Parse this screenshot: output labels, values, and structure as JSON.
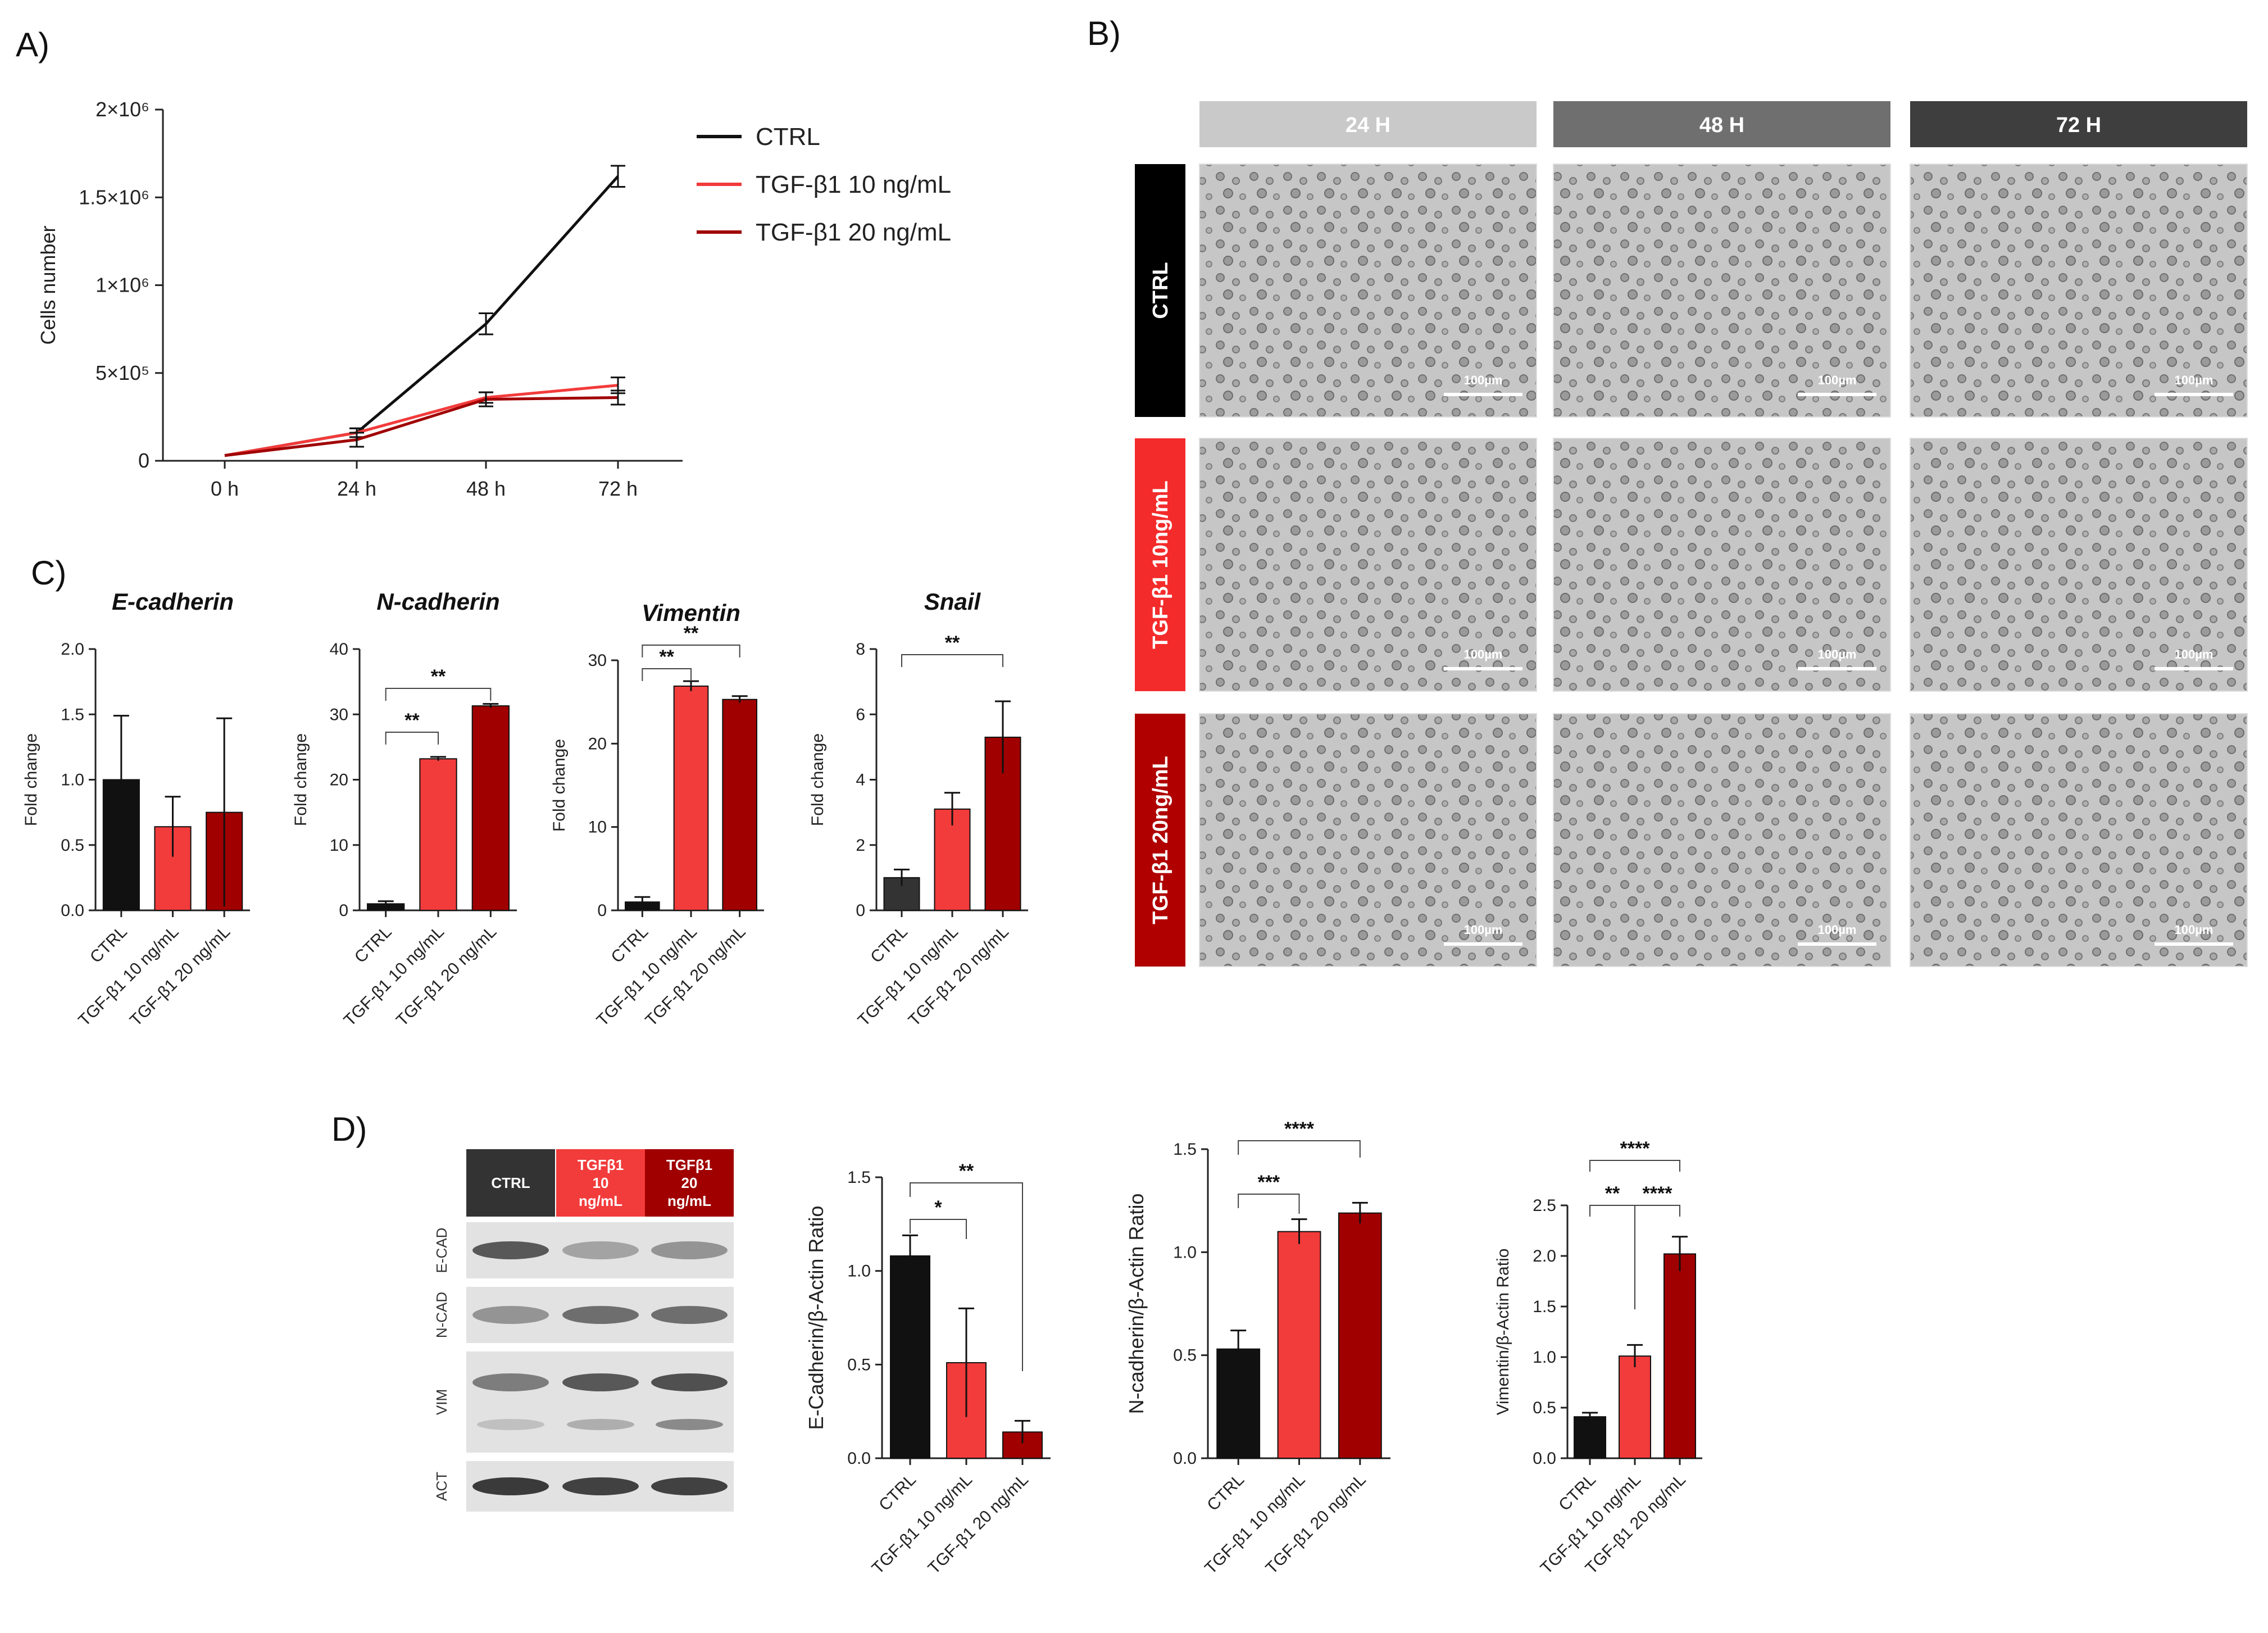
{
  "panels": {
    "a": "A)",
    "b": "B)",
    "c": "C)",
    "d": "D)"
  },
  "colors": {
    "ctrl": "#111111",
    "tgf10": "#f23b3b",
    "tgf20": "#a00000",
    "ctrl_dark": "#333333"
  },
  "chart_data": [
    {
      "id": "growth",
      "type": "line",
      "x": [
        "0 h",
        "24 h",
        "48 h",
        "72 h"
      ],
      "ylabel": "Cells number",
      "ylim": [
        0,
        2000000
      ],
      "yticks": [
        "0",
        "5×10⁵",
        "1×10⁶",
        "1.5×10⁶",
        "2×10⁶"
      ],
      "ytick_values": [
        0,
        500000,
        1000000,
        1500000,
        2000000
      ],
      "legend_position": "right",
      "series": [
        {
          "name": "CTRL",
          "color": "#111111",
          "values": [
            30000,
            160000,
            780000,
            1620000
          ],
          "err": [
            0,
            25000,
            60000,
            60000
          ]
        },
        {
          "name": "TGF-β1 10 ng/mL",
          "color": "#f23b3b",
          "values": [
            30000,
            160000,
            360000,
            430000
          ],
          "err": [
            0,
            25000,
            30000,
            45000
          ]
        },
        {
          "name": "TGF-β1 20 ng/mL",
          "color": "#a00000",
          "values": [
            30000,
            120000,
            350000,
            360000
          ],
          "err": [
            0,
            40000,
            40000,
            40000
          ]
        }
      ]
    },
    {
      "id": "ecad_qpcr",
      "type": "bar",
      "title": "E-cadherin",
      "ylabel": "Fold change",
      "categories": [
        "CTRL",
        "TGF-β1 10 ng/mL",
        "TGF-β1 20 ng/mL"
      ],
      "values": [
        1.0,
        0.64,
        0.75
      ],
      "err": [
        0.49,
        0.23,
        0.72
      ],
      "ylim": [
        0,
        2.0
      ],
      "yticks": [
        "0.0",
        "0.5",
        "1.0",
        "1.5",
        "2.0"
      ],
      "significance": []
    },
    {
      "id": "ncad_qpcr",
      "type": "bar",
      "title": "N-cadherin",
      "ylabel": "Fold change",
      "categories": [
        "CTRL",
        "TGF-β1 10 ng/mL",
        "TGF-β1 20 ng/mL"
      ],
      "values": [
        1.0,
        23.2,
        31.3
      ],
      "err": [
        0.4,
        0.3,
        0.3
      ],
      "ylim": [
        0,
        40
      ],
      "yticks": [
        "0",
        "10",
        "20",
        "30",
        "40"
      ],
      "significance": [
        {
          "from": 0,
          "to": 1,
          "label": "**"
        },
        {
          "from": 0,
          "to": 2,
          "label": "**"
        }
      ]
    },
    {
      "id": "vim_qpcr",
      "type": "bar",
      "title": "Vimentin",
      "ylabel": "Fold change",
      "categories": [
        "CTRL",
        "TGF-β1 10 ng/mL",
        "TGF-β1 20 ng/mL"
      ],
      "values": [
        1.0,
        26.9,
        25.3
      ],
      "err": [
        0.6,
        0.6,
        0.4
      ],
      "ylim": [
        0,
        30
      ],
      "yticks": [
        "0",
        "10",
        "20",
        "30"
      ],
      "significance": [
        {
          "from": 0,
          "to": 1,
          "label": "**"
        },
        {
          "from": 0,
          "to": 2,
          "label": "**"
        }
      ]
    },
    {
      "id": "snail_qpcr",
      "type": "bar",
      "title": "Snail",
      "ylabel": "Fold change",
      "categories": [
        "CTRL",
        "TGF-β1 10 ng/mL",
        "TGF-β1 20 ng/mL"
      ],
      "values": [
        1.0,
        3.1,
        5.3
      ],
      "err": [
        0.25,
        0.5,
        1.1
      ],
      "ylim": [
        0,
        8
      ],
      "yticks": [
        "0",
        "2",
        "4",
        "6",
        "8"
      ],
      "significance": [
        {
          "from": 0,
          "to": 2,
          "label": "**"
        }
      ]
    },
    {
      "id": "ecad_wb",
      "type": "bar",
      "title": "",
      "ylabel": "E-Cadherin/β-Actin Ratio",
      "categories": [
        "CTRL",
        "TGF-β1 10 ng/mL",
        "TGF-β1 20 ng/mL"
      ],
      "values": [
        1.08,
        0.51,
        0.14
      ],
      "err": [
        0.11,
        0.29,
        0.06
      ],
      "ylim": [
        0,
        1.5
      ],
      "yticks": [
        "0.0",
        "0.5",
        "1.0",
        "1.5"
      ],
      "significance": [
        {
          "from": 0,
          "to": 1,
          "label": "*"
        },
        {
          "from": 0,
          "to": 2,
          "label": "**"
        }
      ]
    },
    {
      "id": "ncad_wb",
      "type": "bar",
      "title": "",
      "ylabel": "N-cadherin/β-Actin Ratio",
      "categories": [
        "CTRL",
        "TGF-β1 10 ng/mL",
        "TGF-β1 20 ng/mL"
      ],
      "values": [
        0.53,
        1.1,
        1.19
      ],
      "err": [
        0.09,
        0.06,
        0.05
      ],
      "ylim": [
        0,
        1.5
      ],
      "yticks": [
        "0.0",
        "0.5",
        "1.0",
        "1.5"
      ],
      "significance": [
        {
          "from": 0,
          "to": 1,
          "label": "***"
        },
        {
          "from": 0,
          "to": 2,
          "label": "****"
        }
      ]
    },
    {
      "id": "vim_wb",
      "type": "bar",
      "title": "",
      "ylabel": "Vimentin/β-Actin Ratio",
      "categories": [
        "CTRL",
        "TGF-β1 10 ng/mL",
        "TGF-β1 20 ng/mL"
      ],
      "values": [
        0.41,
        1.01,
        2.02
      ],
      "err": [
        0.04,
        0.11,
        0.17
      ],
      "ylim": [
        0,
        2.5
      ],
      "yticks": [
        "0.0",
        "0.5",
        "1.0",
        "1.5",
        "2.0",
        "2.5"
      ],
      "significance": [
        {
          "from": 0,
          "to": 1,
          "label": "**"
        },
        {
          "from": 1,
          "to": 2,
          "label": "****"
        },
        {
          "from": 0,
          "to": 2,
          "label": "****"
        }
      ]
    }
  ],
  "micrographs": {
    "columns": [
      "24 H",
      "48 H",
      "72 H"
    ],
    "rows": [
      "CTRL",
      "TGF-β1 10ng/mL",
      "TGF-β1 20ng/mL"
    ],
    "scale_bar": "100µm"
  },
  "western": {
    "lanes": [
      [
        "CTRL"
      ],
      [
        "TGFβ1",
        "10",
        "ng/mL"
      ],
      [
        "TGFβ1",
        "20",
        "ng/mL"
      ]
    ],
    "bands": [
      "E-CAD",
      "N-CAD",
      "VIM",
      "ACT"
    ]
  }
}
